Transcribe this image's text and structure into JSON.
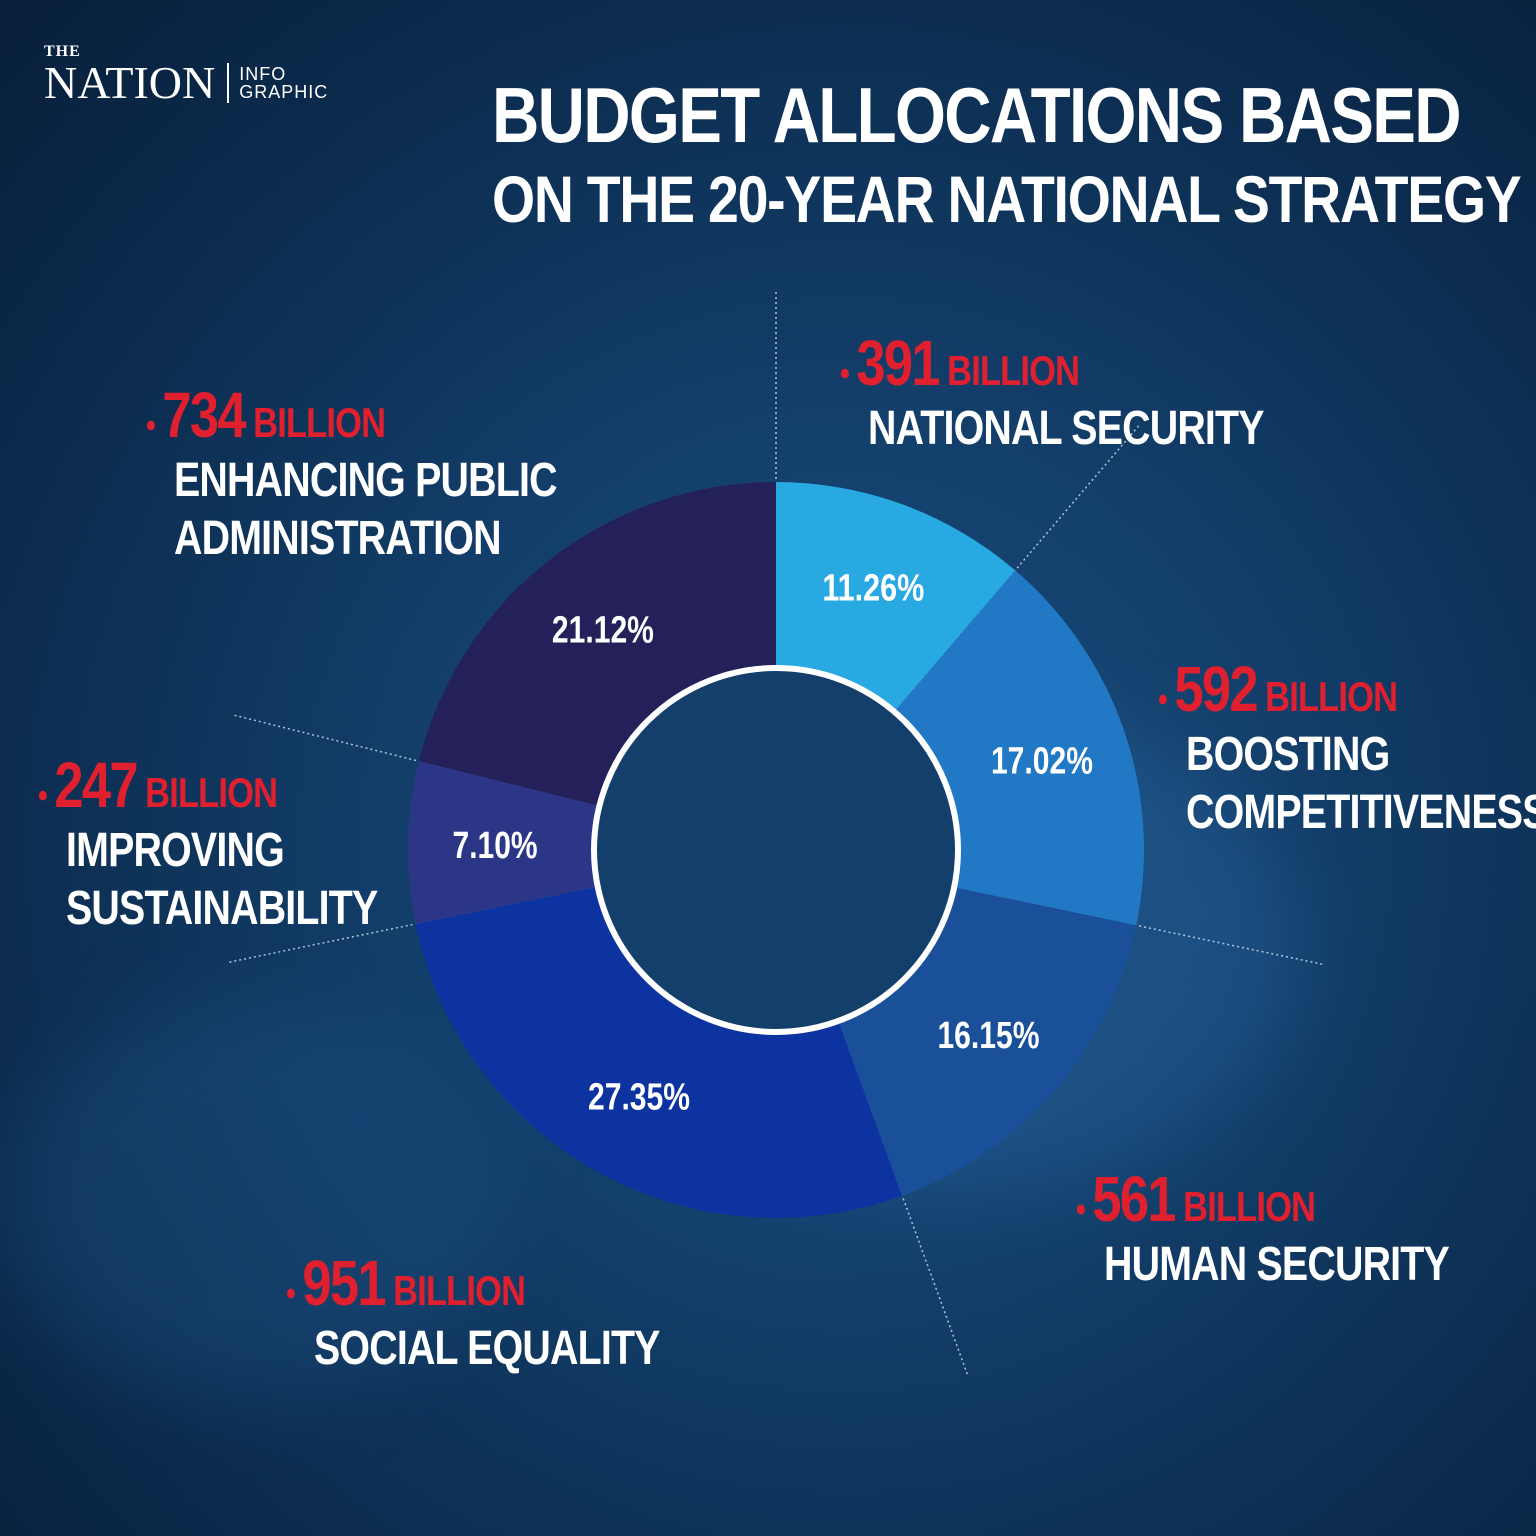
{
  "brand": {
    "the": "THE",
    "name": "NATION",
    "tag_line1": "INFO",
    "tag_line2": "GRAPHIC"
  },
  "header": {
    "title_line1": "BUDGET ALLOCATIONS BASED",
    "title_line2": "ON THE 20-YEAR NATIONAL STRATEGY"
  },
  "colors": {
    "amount": "#e0202e",
    "text": "#ffffff"
  },
  "chart_data": {
    "type": "pie",
    "title": "BUDGET ALLOCATIONS BASED ON THE 20-YEAR NATIONAL STRATEGY",
    "unit": "BILLION",
    "slices": [
      {
        "category": "NATIONAL SECURITY",
        "amount": "391",
        "percent_label": "11.26%",
        "percent": 11.26,
        "color": "#29a9e1"
      },
      {
        "category": "BOOSTING COMPETITIVENESS",
        "amount": "592",
        "percent_label": "17.02%",
        "percent": 17.02,
        "color": "#2178c4"
      },
      {
        "category": "HUMAN SECURITY",
        "amount": "561",
        "percent_label": "16.15%",
        "percent": 16.15,
        "color": "#1a4f9a"
      },
      {
        "category": "SOCIAL EQUALITY",
        "amount": "951",
        "percent_label": "27.35%",
        "percent": 27.35,
        "color": "#0c33a0"
      },
      {
        "category": "IMPROVING SUSTAINABILITY",
        "amount": "247",
        "percent_label": "7.10%",
        "percent": 7.1,
        "color": "#2b3686"
      },
      {
        "category": "ENHANCING PUBLIC ADMINISTRATION",
        "amount": "734",
        "percent_label": "21.12%",
        "percent": 21.12,
        "color": "#24215a"
      }
    ]
  },
  "labels": [
    {
      "amount": "734",
      "unit": "BILLION",
      "line1": "ENHANCING PUBLIC",
      "line2": "ADMINISTRATION"
    },
    {
      "amount": "391",
      "unit": "BILLION",
      "line1": "NATIONAL SECURITY",
      "line2": ""
    },
    {
      "amount": "592",
      "unit": "BILLION",
      "line1": "BOOSTING",
      "line2": "COMPETITIVENESS"
    },
    {
      "amount": "247",
      "unit": "BILLION",
      "line1": "IMPROVING",
      "line2": "SUSTAINABILITY"
    },
    {
      "amount": "561",
      "unit": "BILLION",
      "line1": "HUMAN SECURITY",
      "line2": ""
    },
    {
      "amount": "951",
      "unit": "BILLION",
      "line1": "SOCIAL EQUALITY",
      "line2": ""
    }
  ]
}
